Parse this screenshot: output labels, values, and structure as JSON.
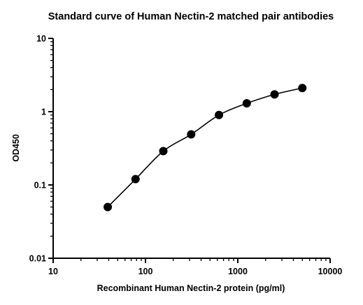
{
  "chart_data": {
    "type": "scatter",
    "title": "Standard curve of Human Nectin-2 matched pair antibodies",
    "xlabel": "Recombinant Human Nectin-2 protein (pg/ml)",
    "ylabel": "OD450",
    "xscale": "log",
    "yscale": "log",
    "xlim": [
      10,
      10000
    ],
    "ylim": [
      0.01,
      10
    ],
    "xticks": [
      {
        "value": 10,
        "label": "10"
      },
      {
        "value": 100,
        "label": "100"
      },
      {
        "value": 1000,
        "label": "1000"
      },
      {
        "value": 10000,
        "label": "10000"
      }
    ],
    "yticks": [
      {
        "value": 0.01,
        "label": "0.01"
      },
      {
        "value": 0.1,
        "label": "0.1"
      },
      {
        "value": 1,
        "label": "1"
      },
      {
        "value": 10,
        "label": "10"
      }
    ],
    "grid": false,
    "legend": "none",
    "fit_curve": true,
    "point_color": "#000000",
    "points": [
      {
        "x": 39,
        "y": 0.05
      },
      {
        "x": 78,
        "y": 0.12
      },
      {
        "x": 156,
        "y": 0.29
      },
      {
        "x": 312.5,
        "y": 0.49
      },
      {
        "x": 625,
        "y": 0.9
      },
      {
        "x": 1250,
        "y": 1.3
      },
      {
        "x": 2500,
        "y": 1.72
      },
      {
        "x": 5000,
        "y": 2.1
      }
    ]
  }
}
